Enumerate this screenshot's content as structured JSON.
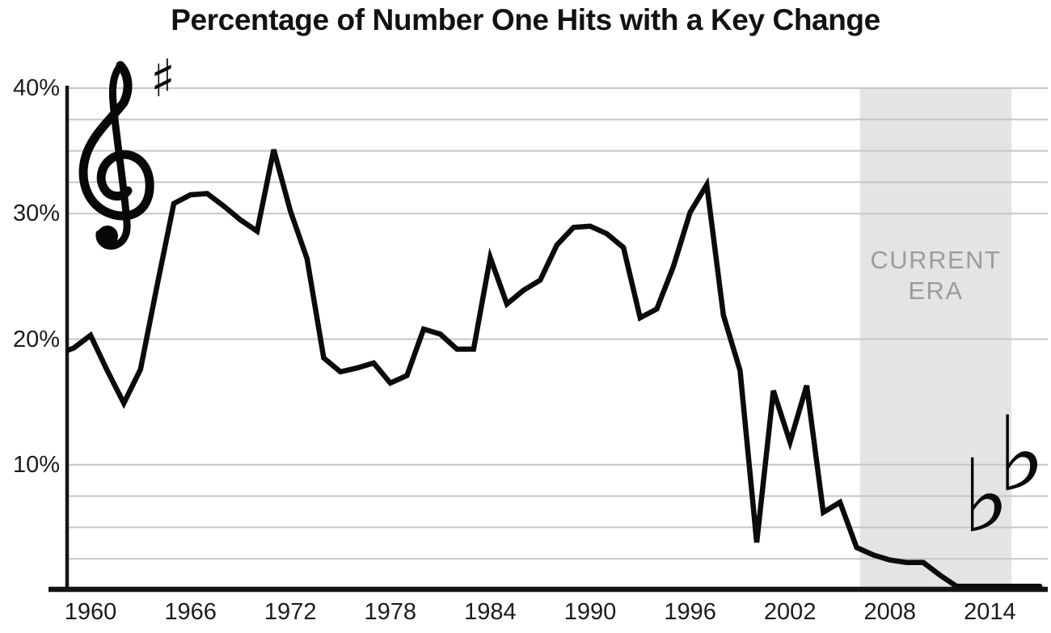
{
  "title": "Percentage of Number One Hits with a Key Change",
  "colors": {
    "line": "#0b0b0b",
    "axis": "#141414",
    "grid": "#c6c6c6",
    "band": "#e5e4e2",
    "era_text": "#9c9c9c",
    "text": "#1c1c1c"
  },
  "icons": {
    "treble_clef": "treble-clef",
    "sharp_glyph": "♯",
    "flat_glyph_1": "♭",
    "flat_glyph_2": "♭"
  },
  "chart_data": {
    "type": "line",
    "title": "Percentage of Number One Hits with a Key Change",
    "xlabel": "",
    "ylabel": "",
    "ylim": [
      0,
      40
    ],
    "xlim": [
      1958,
      2017.5
    ],
    "grid": "horizontal; gridlines form two musical staves (five lines at 30-40% behind treble clef, five lines at 0-10% behind flats) plus lines at 10%, 20%, 30%",
    "gridlines_pct": [
      40,
      37.5,
      35,
      32.5,
      30,
      20,
      10,
      7.5,
      5,
      2.5
    ],
    "legend": "none",
    "x": [
      1958,
      1959,
      1960,
      1961,
      1962,
      1963,
      1964,
      1965,
      1966,
      1967,
      1968,
      1969,
      1970,
      1971,
      1972,
      1973,
      1974,
      1975,
      1976,
      1977,
      1978,
      1979,
      1980,
      1981,
      1982,
      1983,
      1984,
      1985,
      1986,
      1987,
      1988,
      1989,
      1990,
      1991,
      1992,
      1993,
      1994,
      1995,
      1996,
      1997,
      1998,
      1999,
      2000,
      2001,
      2002,
      2003,
      2004,
      2005,
      2006,
      2007,
      2008,
      2009,
      2010,
      2011,
      2012,
      2013,
      2014,
      2015,
      2016,
      2017
    ],
    "values": [
      18.8,
      19.3,
      20.3,
      17.5,
      14.9,
      17.6,
      24.3,
      30.8,
      31.5,
      31.6,
      30.6,
      29.5,
      28.6,
      35.1,
      30.2,
      26.4,
      18.5,
      17.4,
      17.7,
      18.1,
      16.5,
      17.1,
      20.8,
      20.4,
      19.2,
      19.2,
      26.5,
      22.8,
      23.9,
      24.7,
      27.5,
      28.9,
      29.0,
      28.4,
      27.3,
      21.7,
      22.4,
      25.8,
      30.1,
      32.3,
      21.9,
      17.5,
      3.8,
      15.9,
      11.8,
      16.3,
      6.2,
      7.0,
      3.4,
      2.8,
      2.4,
      2.2,
      2.2,
      1.2,
      0.3,
      0.3,
      0.3,
      0.3,
      0.3,
      0.3
    ],
    "x_ticks": [
      {
        "label": "1960",
        "year": 1960
      },
      {
        "label": "1966",
        "year": 1966
      },
      {
        "label": "1972",
        "year": 1972
      },
      {
        "label": "1978",
        "year": 1978
      },
      {
        "label": "1984",
        "year": 1984
      },
      {
        "label": "1990",
        "year": 1990
      },
      {
        "label": "1996",
        "year": 1996
      },
      {
        "label": "2002",
        "year": 2002
      },
      {
        "label": "2008",
        "year": 2008
      },
      {
        "label": "2014",
        "year": 2014
      }
    ],
    "y_ticks": [
      {
        "label": "40%",
        "value": 40
      },
      {
        "label": "30%",
        "value": 30
      },
      {
        "label": "20%",
        "value": 20
      },
      {
        "label": "10%",
        "value": 10
      }
    ],
    "annotations": {
      "current_era": {
        "line1": "CURRENT",
        "line2": "ERA",
        "band_years": [
          2006.2,
          2015.3
        ],
        "band_pct_range": [
          0,
          40
        ]
      },
      "music_symbols": "treble clef with sharp sign on upper staff (left), two flat signs on lower staff (right)"
    }
  }
}
